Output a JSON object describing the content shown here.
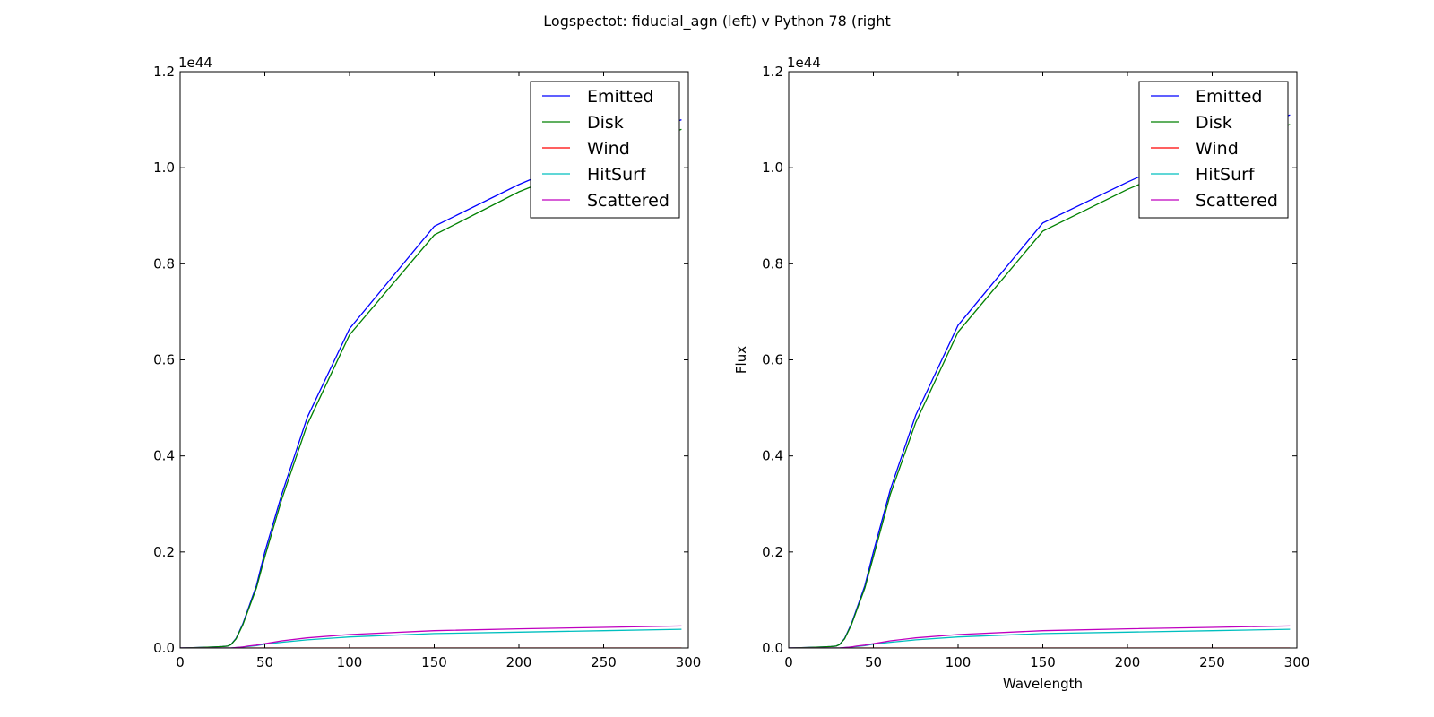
{
  "figure": {
    "title": "Logspectot: fiducial_agn (left) v Python 78 (right"
  },
  "chart_data": [
    {
      "type": "line",
      "xlabel": "",
      "ylabel": "",
      "xlim": [
        0,
        300
      ],
      "ylim": [
        0,
        1.2
      ],
      "y_scale_label": "1e44",
      "xticks": [
        0,
        50,
        100,
        150,
        200,
        250,
        300
      ],
      "xtick_labels": [
        "0",
        "50",
        "100",
        "150",
        "200",
        "250",
        "300"
      ],
      "yticks": [
        0.0,
        0.2,
        0.4,
        0.6,
        0.8,
        1.0,
        1.2
      ],
      "ytick_labels": [
        "0.0",
        "0.2",
        "0.4",
        "0.6",
        "0.8",
        "1.0",
        "1.2"
      ],
      "grid": false,
      "legend_position": "top-right",
      "x": [
        0,
        10,
        20,
        25,
        28,
        30,
        33,
        37,
        40,
        45,
        50,
        60,
        75,
        100,
        150,
        200,
        250,
        296
      ],
      "series": [
        {
          "name": "Emitted",
          "color": "#0000ff",
          "values": [
            0,
            0.001,
            0.002,
            0.003,
            0.004,
            0.007,
            0.02,
            0.05,
            0.08,
            0.13,
            0.2,
            0.32,
            0.48,
            0.665,
            0.878,
            0.965,
            1.04,
            1.1
          ]
        },
        {
          "name": "Disk",
          "color": "#008000",
          "values": [
            0,
            0.001,
            0.002,
            0.003,
            0.004,
            0.007,
            0.019,
            0.048,
            0.077,
            0.125,
            0.19,
            0.31,
            0.465,
            0.652,
            0.86,
            0.95,
            1.02,
            1.08
          ]
        },
        {
          "name": "Wind",
          "color": "#ff0000",
          "values": [
            0,
            0,
            0,
            0,
            0,
            0,
            0,
            0,
            0,
            0,
            0,
            0,
            0,
            0,
            0,
            0,
            0,
            0
          ]
        },
        {
          "name": "HitSurf",
          "color": "#00bfbf",
          "values": [
            0,
            0,
            0,
            0,
            0,
            0,
            0.001,
            0.002,
            0.003,
            0.005,
            0.008,
            0.012,
            0.017,
            0.023,
            0.03,
            0.033,
            0.036,
            0.039
          ]
        },
        {
          "name": "Scattered",
          "color": "#bf00bf",
          "values": [
            0,
            0,
            0,
            0,
            0,
            0,
            0.001,
            0.002,
            0.004,
            0.006,
            0.009,
            0.015,
            0.021,
            0.028,
            0.036,
            0.04,
            0.043,
            0.046
          ]
        }
      ]
    },
    {
      "type": "line",
      "xlabel": "Wavelength",
      "ylabel": "Flux",
      "xlim": [
        0,
        300
      ],
      "ylim": [
        0,
        1.2
      ],
      "y_scale_label": "1e44",
      "xticks": [
        0,
        50,
        100,
        150,
        200,
        250,
        300
      ],
      "xtick_labels": [
        "0",
        "50",
        "100",
        "150",
        "200",
        "250",
        "300"
      ],
      "yticks": [
        0.0,
        0.2,
        0.4,
        0.6,
        0.8,
        1.0,
        1.2
      ],
      "ytick_labels": [
        "0.0",
        "0.2",
        "0.4",
        "0.6",
        "0.8",
        "1.0",
        "1.2"
      ],
      "grid": false,
      "legend_position": "top-right",
      "x": [
        0,
        10,
        20,
        25,
        28,
        30,
        33,
        37,
        40,
        45,
        50,
        60,
        75,
        100,
        150,
        200,
        250,
        296
      ],
      "series": [
        {
          "name": "Emitted",
          "color": "#0000ff",
          "values": [
            0,
            0.001,
            0.002,
            0.003,
            0.004,
            0.007,
            0.02,
            0.05,
            0.08,
            0.13,
            0.2,
            0.33,
            0.485,
            0.672,
            0.885,
            0.97,
            1.05,
            1.11
          ]
        },
        {
          "name": "Disk",
          "color": "#008000",
          "values": [
            0,
            0.001,
            0.002,
            0.003,
            0.004,
            0.007,
            0.019,
            0.048,
            0.077,
            0.125,
            0.19,
            0.32,
            0.47,
            0.658,
            0.868,
            0.955,
            1.03,
            1.09
          ]
        },
        {
          "name": "Wind",
          "color": "#ff0000",
          "values": [
            0,
            0,
            0,
            0,
            0,
            0,
            0,
            0,
            0,
            0,
            0,
            0,
            0,
            0,
            0,
            0,
            0,
            0
          ]
        },
        {
          "name": "HitSurf",
          "color": "#00bfbf",
          "values": [
            0,
            0,
            0,
            0,
            0,
            0,
            0.001,
            0.002,
            0.003,
            0.005,
            0.008,
            0.012,
            0.017,
            0.023,
            0.03,
            0.033,
            0.036,
            0.039
          ]
        },
        {
          "name": "Scattered",
          "color": "#bf00bf",
          "values": [
            0,
            0,
            0,
            0,
            0,
            0,
            0.001,
            0.002,
            0.004,
            0.006,
            0.009,
            0.015,
            0.021,
            0.028,
            0.036,
            0.04,
            0.043,
            0.046
          ]
        }
      ]
    }
  ]
}
